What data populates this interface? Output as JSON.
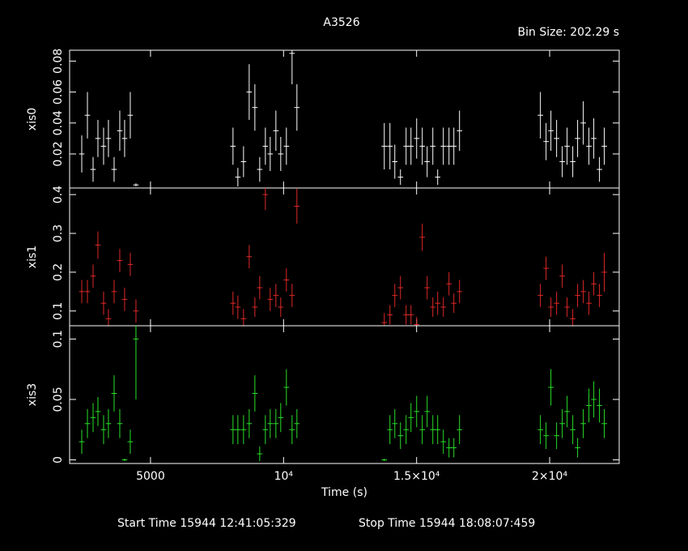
{
  "title": "A3526",
  "subtitle": "Bin Size: 202.29 s",
  "start_time": "Start Time 15944 12:41:05:329",
  "stop_time": "Stop Time 15944 18:08:07:459",
  "chart_data": [
    {
      "type": "errorbar",
      "y_label": "xis0",
      "color": "#ffffff",
      "xlim": [
        1960,
        22614
      ],
      "xticks": [
        5000,
        {
          "value": 10000,
          "label": "10⁴"
        },
        {
          "value": 15000,
          "label": "1.5×10⁴"
        },
        {
          "value": 20000,
          "label": "2×10⁴"
        }
      ],
      "ylim": [
        -0.002,
        0.087
      ],
      "yticks": [
        0.02,
        0.04,
        0.06,
        0.08
      ],
      "xerr": 101,
      "x": [
        2416,
        2630,
        2842,
        3024,
        3237,
        3419,
        3632,
        3845,
        4027,
        4240,
        4453,
        8100,
        8283,
        8496,
        8709,
        8922,
        9104,
        9317,
        9499,
        9712,
        9894,
        10107,
        10320,
        10502,
        13786,
        13998,
        14181,
        14394,
        14606,
        14789,
        15002,
        15214,
        15397,
        15610,
        15792,
        16005,
        16218,
        16400,
        16613,
        19653,
        19866,
        20048,
        20261,
        20474,
        20656,
        20869,
        21051,
        21264,
        21477,
        21659,
        21872,
        22054
      ],
      "values": [
        0.02,
        0.045,
        0.01,
        0.03,
        0.025,
        0.03,
        0.01,
        0.035,
        0.03,
        0.045,
        0.0,
        0.025,
        0.005,
        0.015,
        0.06,
        0.05,
        0.01,
        0.025,
        0.02,
        0.035,
        0.02,
        0.025,
        0.085,
        0.05,
        0.025,
        0.025,
        0.015,
        0.005,
        0.025,
        0.025,
        0.03,
        0.025,
        0.015,
        0.025,
        0.005,
        0.025,
        0.025,
        0.025,
        0.035,
        0.045,
        0.028,
        0.035,
        0.03,
        0.015,
        0.025,
        0.015,
        0.03,
        0.04,
        0.025,
        0.03,
        0.01,
        0.025
      ],
      "yerr": [
        0.012,
        0.015,
        0.008,
        0.012,
        0.012,
        0.012,
        0.008,
        0.013,
        0.012,
        0.015,
        0.001,
        0.012,
        0.006,
        0.01,
        0.018,
        0.015,
        0.008,
        0.012,
        0.011,
        0.013,
        0.011,
        0.012,
        0.02,
        0.015,
        0.015,
        0.015,
        0.011,
        0.005,
        0.012,
        0.012,
        0.013,
        0.012,
        0.01,
        0.012,
        0.005,
        0.012,
        0.012,
        0.012,
        0.013,
        0.015,
        0.012,
        0.013,
        0.012,
        0.01,
        0.012,
        0.01,
        0.012,
        0.014,
        0.012,
        0.013,
        0.008,
        0.012
      ]
    },
    {
      "type": "errorbar",
      "y_label": "xis1",
      "color": "#e02828",
      "xlim": [
        1960,
        22614
      ],
      "xticks": [
        5000,
        {
          "value": 10000,
          "label": "10⁴"
        },
        {
          "value": 15000,
          "label": "1.5×10⁴"
        },
        {
          "value": 20000,
          "label": "2×10⁴"
        }
      ],
      "ylim": [
        0.062,
        0.417
      ],
      "yticks": [
        0.1,
        0.2,
        0.3,
        0.4
      ],
      "xerr": 101,
      "x": [
        2416,
        2630,
        2842,
        3024,
        3237,
        3419,
        3632,
        3845,
        4027,
        4240,
        4453,
        8100,
        8283,
        8496,
        8709,
        8922,
        9104,
        9317,
        9499,
        9712,
        9894,
        10107,
        10320,
        10502,
        13786,
        13998,
        14181,
        14394,
        14606,
        14789,
        15002,
        15214,
        15397,
        15610,
        15792,
        16005,
        16218,
        16400,
        16613,
        19653,
        19866,
        20048,
        20261,
        20474,
        20656,
        20869,
        21051,
        21264,
        21477,
        21659,
        21872,
        22054
      ],
      "values": [
        0.15,
        0.15,
        0.19,
        0.27,
        0.12,
        0.08,
        0.15,
        0.23,
        0.13,
        0.22,
        0.1,
        0.12,
        0.11,
        0.08,
        0.24,
        0.11,
        0.16,
        0.4,
        0.13,
        0.14,
        0.11,
        0.18,
        0.14,
        0.37,
        0.07,
        0.09,
        0.14,
        0.16,
        0.09,
        0.09,
        0.065,
        0.29,
        0.16,
        0.11,
        0.12,
        0.11,
        0.17,
        0.12,
        0.15,
        0.14,
        0.21,
        0.11,
        0.12,
        0.19,
        0.11,
        0.08,
        0.14,
        0.15,
        0.12,
        0.17,
        0.14,
        0.2
      ],
      "yerr": [
        0.03,
        0.03,
        0.03,
        0.035,
        0.03,
        0.025,
        0.03,
        0.03,
        0.03,
        0.03,
        0.03,
        0.03,
        0.03,
        0.025,
        0.03,
        0.025,
        0.03,
        0.04,
        0.03,
        0.03,
        0.025,
        0.03,
        0.03,
        0.045,
        0.025,
        0.025,
        0.03,
        0.03,
        0.025,
        0.025,
        0.02,
        0.035,
        0.03,
        0.025,
        0.03,
        0.025,
        0.03,
        0.025,
        0.03,
        0.03,
        0.03,
        0.025,
        0.03,
        0.03,
        0.025,
        0.025,
        0.03,
        0.03,
        0.03,
        0.03,
        0.03,
        0.05
      ]
    },
    {
      "type": "errorbar",
      "y_label": "xis3",
      "x_label": "Time (s)",
      "color": "#28e028",
      "xlim": [
        1960,
        22614
      ],
      "xticks": [
        5000,
        {
          "value": 10000,
          "label": "10⁴"
        },
        {
          "value": 15000,
          "label": "1.5×10⁴"
        },
        {
          "value": 20000,
          "label": "2×10⁴"
        }
      ],
      "ylim": [
        -0.003,
        0.111
      ],
      "yticks": [
        0,
        0.05,
        0.1
      ],
      "xerr": 101,
      "x": [
        2416,
        2630,
        2842,
        3024,
        3237,
        3419,
        3632,
        3845,
        4027,
        4240,
        4453,
        8100,
        8283,
        8496,
        8709,
        8922,
        9104,
        9317,
        9499,
        9712,
        9894,
        10107,
        10320,
        10502,
        13786,
        13998,
        14181,
        14394,
        14606,
        14789,
        15002,
        15214,
        15397,
        15610,
        15792,
        16005,
        16218,
        16400,
        16613,
        19653,
        19866,
        20048,
        20261,
        20474,
        20656,
        20869,
        21051,
        21264,
        21477,
        21659,
        21872,
        22054
      ],
      "values": [
        0.015,
        0.03,
        0.035,
        0.04,
        0.025,
        0.03,
        0.055,
        0.03,
        0.0,
        0.015,
        0.1,
        0.025,
        0.025,
        0.025,
        0.03,
        0.055,
        0.005,
        0.025,
        0.03,
        0.03,
        0.035,
        0.06,
        0.025,
        0.03,
        0.0,
        0.025,
        0.03,
        0.02,
        0.025,
        0.035,
        0.04,
        0.025,
        0.04,
        0.025,
        0.025,
        0.015,
        0.01,
        0.01,
        0.025,
        0.025,
        0.02,
        0.06,
        0.02,
        0.03,
        0.04,
        0.025,
        0.01,
        0.03,
        0.045,
        0.05,
        0.045,
        0.03
      ],
      "yerr": [
        0.01,
        0.012,
        0.012,
        0.012,
        0.012,
        0.012,
        0.015,
        0.012,
        0.001,
        0.01,
        0.05,
        0.012,
        0.012,
        0.012,
        0.012,
        0.015,
        0.006,
        0.012,
        0.012,
        0.012,
        0.012,
        0.015,
        0.012,
        0.012,
        0.001,
        0.012,
        0.012,
        0.011,
        0.012,
        0.012,
        0.013,
        0.012,
        0.013,
        0.012,
        0.012,
        0.01,
        0.008,
        0.008,
        0.012,
        0.012,
        0.011,
        0.015,
        0.011,
        0.012,
        0.013,
        0.012,
        0.008,
        0.012,
        0.014,
        0.015,
        0.014,
        0.012
      ]
    }
  ]
}
